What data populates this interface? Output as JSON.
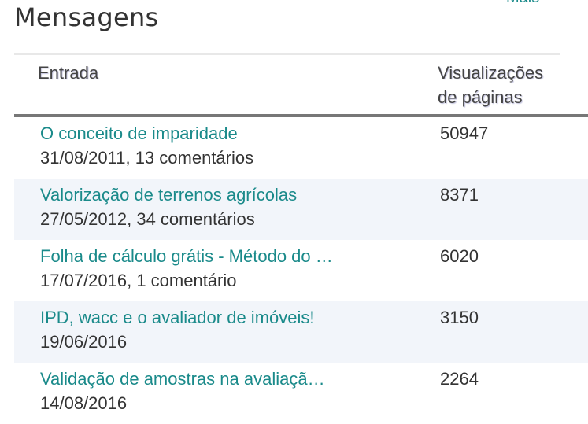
{
  "header": {
    "more_link": "Mais",
    "title": "Mensagens"
  },
  "table": {
    "columns": {
      "entry": "Entrada",
      "views_line1": "Visualizações",
      "views_line2": "de páginas"
    },
    "rows": [
      {
        "title": "O conceito de imparidade",
        "meta": "31/08/2011, 13 comentários",
        "views": "50947"
      },
      {
        "title": "Valorização de terrenos agrícolas",
        "meta": "27/05/2012, 34 comentários",
        "views": "8371"
      },
      {
        "title": "Folha de cálculo grátis - Método do …",
        "meta": "17/07/2016, 1 comentário",
        "views": "6020"
      },
      {
        "title": "IPD, wacc e o avaliador de imóveis!",
        "meta": "19/06/2016",
        "views": "3150"
      },
      {
        "title": "Validação de amostras na avaliaçã…",
        "meta": "14/08/2016",
        "views": "2264"
      }
    ]
  },
  "colors": {
    "link": "#1a8a8a",
    "row_alt": "#f2f5fa",
    "header_rule": "#777777"
  }
}
